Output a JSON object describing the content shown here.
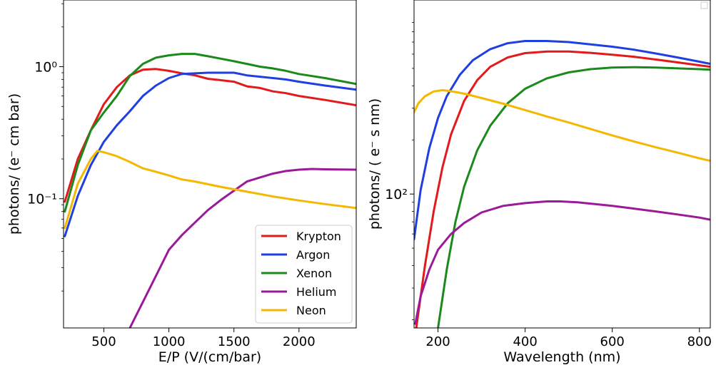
{
  "chart_data": [
    {
      "type": "line",
      "xlabel": "E/P (V/(cm/bar)",
      "ylabel": "photons/ (e⁻ cm bar)",
      "x_scale": "linear",
      "y_scale": "log",
      "xlim": [
        190,
        2440
      ],
      "ylim": [
        0.0105,
        3.2
      ],
      "x_ticks": [
        500,
        1000,
        1500,
        2000
      ],
      "x_tick_labels": [
        "500",
        "1000",
        "1500",
        "2000"
      ],
      "y_ticks": [
        0.1,
        1
      ],
      "y_tick_labels": [
        "10⁻¹",
        "10⁰"
      ],
      "legend": {
        "position": "lower-right",
        "entries": [
          "Krypton",
          "Argon",
          "Xenon",
          "Helium",
          "Neon"
        ]
      },
      "series": [
        {
          "name": "Krypton",
          "color": "#e31a1c",
          "x": [
            200,
            300,
            400,
            500,
            600,
            700,
            800,
            900,
            1000,
            1100,
            1200,
            1300,
            1400,
            1500,
            1600,
            1700,
            1800,
            1900,
            2000,
            2200,
            2440
          ],
          "y": [
            0.095,
            0.2,
            0.33,
            0.52,
            0.7,
            0.86,
            0.95,
            0.96,
            0.93,
            0.89,
            0.86,
            0.81,
            0.79,
            0.77,
            0.71,
            0.69,
            0.65,
            0.63,
            0.6,
            0.56,
            0.51
          ]
        },
        {
          "name": "Argon",
          "color": "#1f3fe0",
          "x": [
            200,
            300,
            400,
            500,
            600,
            700,
            800,
            900,
            1000,
            1100,
            1200,
            1300,
            1400,
            1500,
            1600,
            1700,
            1800,
            1900,
            2000,
            2200,
            2440
          ],
          "y": [
            0.052,
            0.105,
            0.18,
            0.27,
            0.36,
            0.46,
            0.6,
            0.72,
            0.82,
            0.88,
            0.89,
            0.9,
            0.9,
            0.9,
            0.86,
            0.84,
            0.82,
            0.8,
            0.77,
            0.72,
            0.67
          ]
        },
        {
          "name": "Xenon",
          "color": "#1a8a1a",
          "x": [
            200,
            300,
            400,
            500,
            600,
            700,
            800,
            900,
            1000,
            1100,
            1200,
            1300,
            1400,
            1500,
            1600,
            1700,
            1800,
            1900,
            2000,
            2200,
            2440
          ],
          "y": [
            0.08,
            0.18,
            0.33,
            0.45,
            0.6,
            0.85,
            1.05,
            1.17,
            1.22,
            1.25,
            1.25,
            1.2,
            1.15,
            1.1,
            1.05,
            1.0,
            0.97,
            0.93,
            0.88,
            0.82,
            0.74
          ]
        },
        {
          "name": "Helium",
          "color": "#9a1a9a",
          "x": [
            700,
            800,
            900,
            1000,
            1100,
            1200,
            1300,
            1400,
            1500,
            1600,
            1700,
            1800,
            1900,
            2000,
            2100,
            2200,
            2440
          ],
          "y": [
            0.0105,
            0.0165,
            0.026,
            0.041,
            0.053,
            0.066,
            0.082,
            0.098,
            0.115,
            0.135,
            0.145,
            0.155,
            0.162,
            0.166,
            0.168,
            0.167,
            0.166
          ]
        },
        {
          "name": "Neon",
          "color": "#f5b800",
          "x": [
            200,
            300,
            400,
            450,
            500,
            600,
            700,
            800,
            900,
            1000,
            1100,
            1200,
            1400,
            1600,
            1800,
            2000,
            2200,
            2440
          ],
          "y": [
            0.06,
            0.13,
            0.2,
            0.23,
            0.225,
            0.21,
            0.19,
            0.17,
            0.16,
            0.15,
            0.14,
            0.135,
            0.123,
            0.113,
            0.104,
            0.097,
            0.091,
            0.085
          ]
        }
      ]
    },
    {
      "type": "line",
      "xlabel": "Wavelength (nm)",
      "ylabel": "photons/ ( e⁻ s nm)",
      "x_scale": "linear",
      "y_scale": "log",
      "xlim": [
        145,
        825
      ],
      "ylim": [
        18,
        1200
      ],
      "x_ticks": [
        200,
        400,
        600,
        800
      ],
      "x_tick_labels": [
        "200",
        "400",
        "600",
        "800"
      ],
      "y_ticks": [
        100
      ],
      "y_tick_labels": [
        "10²"
      ],
      "legend": {
        "position": "top-right",
        "entries": []
      },
      "series": [
        {
          "name": "Argon",
          "color": "#1f3fe0",
          "x": [
            145,
            160,
            180,
            200,
            220,
            250,
            280,
            320,
            360,
            400,
            450,
            500,
            550,
            600,
            650,
            700,
            750,
            800,
            825
          ],
          "y": [
            56,
            105,
            180,
            265,
            350,
            460,
            555,
            640,
            690,
            710,
            710,
            700,
            680,
            660,
            635,
            605,
            575,
            545,
            530
          ]
        },
        {
          "name": "Krypton",
          "color": "#e31a1c",
          "x": [
            150,
            170,
            190,
            210,
            230,
            260,
            290,
            320,
            360,
            400,
            450,
            500,
            550,
            600,
            650,
            700,
            750,
            800,
            825
          ],
          "y": [
            18,
            40,
            80,
            140,
            215,
            330,
            430,
            510,
            575,
            608,
            620,
            620,
            610,
            595,
            580,
            560,
            540,
            520,
            510
          ]
        },
        {
          "name": "Xenon",
          "color": "#1a8a1a",
          "x": [
            200,
            220,
            240,
            260,
            290,
            320,
            360,
            400,
            450,
            500,
            550,
            600,
            650,
            700,
            750,
            800,
            825
          ],
          "y": [
            18,
            38,
            70,
            110,
            175,
            240,
            320,
            385,
            440,
            475,
            495,
            505,
            508,
            505,
            500,
            495,
            492
          ]
        },
        {
          "name": "Helium",
          "color": "#9a1a9a",
          "x": [
            148,
            160,
            180,
            200,
            230,
            260,
            300,
            350,
            400,
            450,
            480,
            520,
            560,
            600,
            650,
            700,
            750,
            800,
            825
          ],
          "y": [
            19,
            27,
            38,
            49,
            60,
            69,
            79,
            86,
            89,
            91,
            91,
            90,
            88,
            86,
            83,
            80,
            77,
            74,
            72
          ]
        },
        {
          "name": "Neon",
          "color": "#f5b800",
          "x": [
            145,
            155,
            170,
            190,
            210,
            230,
            260,
            300,
            350,
            400,
            450,
            500,
            550,
            600,
            650,
            700,
            750,
            800,
            825
          ],
          "y": [
            285,
            320,
            350,
            372,
            378,
            373,
            362,
            342,
            318,
            293,
            270,
            250,
            230,
            212,
            196,
            182,
            170,
            158,
            153
          ]
        }
      ]
    }
  ]
}
